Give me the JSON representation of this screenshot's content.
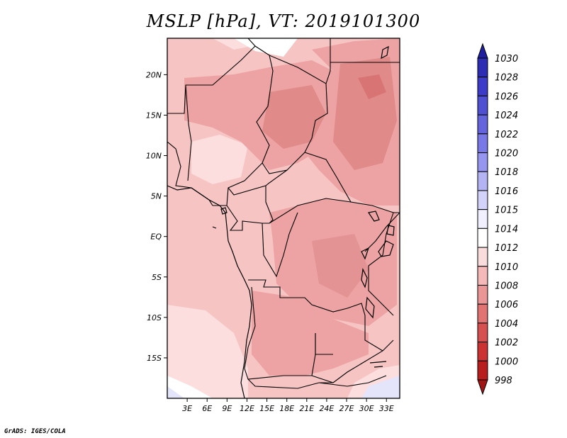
{
  "title": "MSLP [hPa], VT: 2019101300",
  "footer": "GrADS: IGES/COLA",
  "map": {
    "variable": "MSLP",
    "units": "hPa",
    "valid_time": "2019101300",
    "lon_range": [
      0,
      35
    ],
    "lat_range": [
      -20,
      24.5
    ],
    "lon_ticks": [
      "3E",
      "6E",
      "9E",
      "12E",
      "15E",
      "18E",
      "21E",
      "24E",
      "27E",
      "30E",
      "33E"
    ],
    "lat_ticks": [
      "20N",
      "15N",
      "10N",
      "5N",
      "EQ",
      "5S",
      "10S",
      "15S"
    ]
  },
  "colorbar": {
    "levels": [
      "1030",
      "1028",
      "1026",
      "1024",
      "1022",
      "1020",
      "1018",
      "1016",
      "1015",
      "1014",
      "1012",
      "1010",
      "1008",
      "1006",
      "1004",
      "1002",
      "1000",
      "998"
    ],
    "colors": [
      "#1e1ea0",
      "#2d2db4",
      "#3c3cc8",
      "#5050d2",
      "#6464dc",
      "#7878e6",
      "#9696f0",
      "#b4b4f5",
      "#d2d2fa",
      "#f0f0ff",
      "#ffffff",
      "#fadcdc",
      "#f5b9b9",
      "#eb9696",
      "#e17373",
      "#d75050",
      "#cd3232",
      "#b91e1e",
      "#a01414"
    ]
  }
}
